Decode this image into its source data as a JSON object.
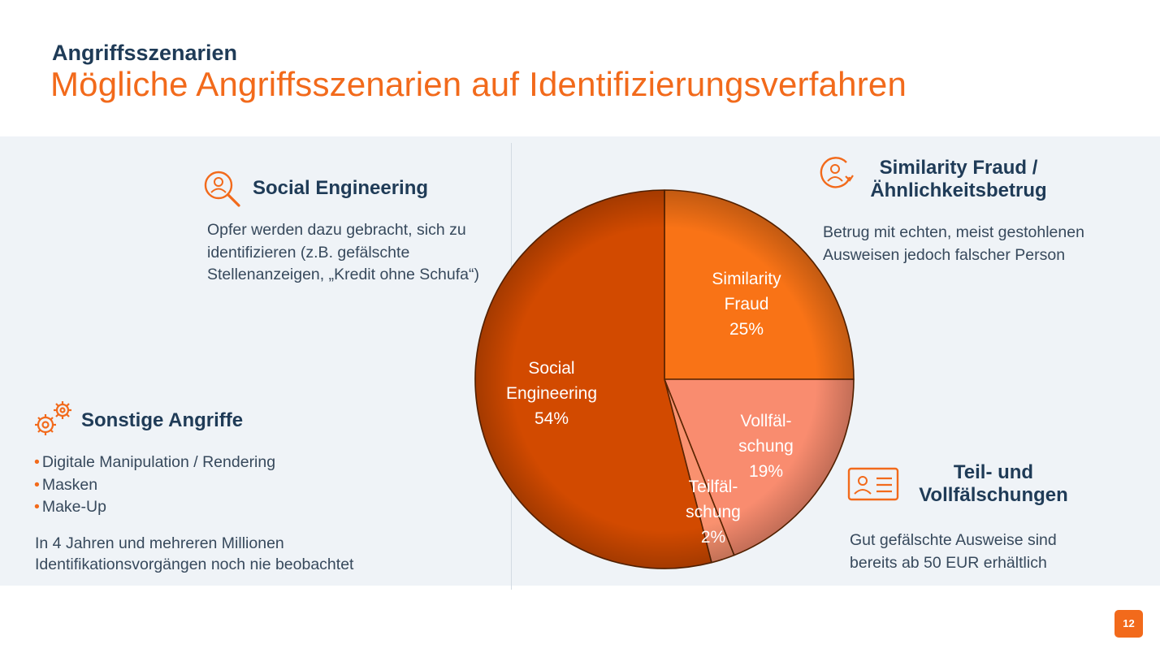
{
  "header": {
    "subtitle": "Angriffsszenarien",
    "title": "Mögliche Angriffsszenarien auf Identifizierungsverfahren"
  },
  "blocks": {
    "social": {
      "icon": "person-magnifier-icon",
      "title": "Social Engineering",
      "lines": [
        "Opfer werden dazu gebracht, sich zu",
        "identifizieren (z.B. gefälschte",
        "Stellenanzeigen, „Kredit ohne Schufa“)"
      ]
    },
    "similarity": {
      "icon": "person-refresh-icon",
      "title_lines": [
        "Similarity Fraud /",
        "Ähnlichkeitsbetrug"
      ],
      "lines": [
        "Betrug mit echten, meist gestohlenen",
        "Ausweisen jedoch falscher Person"
      ]
    },
    "sonstige": {
      "icon": "gears-icon",
      "title": "Sonstige Angriffe",
      "bullets": [
        "Digitale Manipulation / Rendering",
        "Masken",
        "Make-Up"
      ],
      "lines": [
        "In 4 Jahren und mehreren Millionen",
        "Identifikationsvorgängen noch nie beobachtet"
      ]
    },
    "teil": {
      "icon": "id-card-icon",
      "title_lines": [
        "Teil- und",
        "Vollfälschungen"
      ],
      "lines": [
        "Gut gefälschte Ausweise sind",
        "bereits ab 50 EUR erhältlich"
      ]
    }
  },
  "chart_data": {
    "type": "pie",
    "start": "12 o'clock, clockwise",
    "slices": [
      {
        "label_lines": [
          "Similarity",
          "Fraud",
          "25%"
        ],
        "value": 25,
        "color": "#f97316"
      },
      {
        "label_lines": [
          "Vollfäl-",
          "schung",
          "19%"
        ],
        "value": 19,
        "color": "#f98c6f"
      },
      {
        "label_lines": [
          "Teilfäl-",
          "schung",
          "2%"
        ],
        "value": 2,
        "color": "#f9916f"
      },
      {
        "label_lines": [
          "Social",
          "Engineering",
          "54%"
        ],
        "value": 54,
        "color": "#d24a00"
      }
    ]
  },
  "footer": {
    "page_number": "12"
  },
  "colors": {
    "accent": "#f26a1b",
    "heading": "#1f3b57",
    "text": "#37495c",
    "panel": "#eff3f7"
  }
}
